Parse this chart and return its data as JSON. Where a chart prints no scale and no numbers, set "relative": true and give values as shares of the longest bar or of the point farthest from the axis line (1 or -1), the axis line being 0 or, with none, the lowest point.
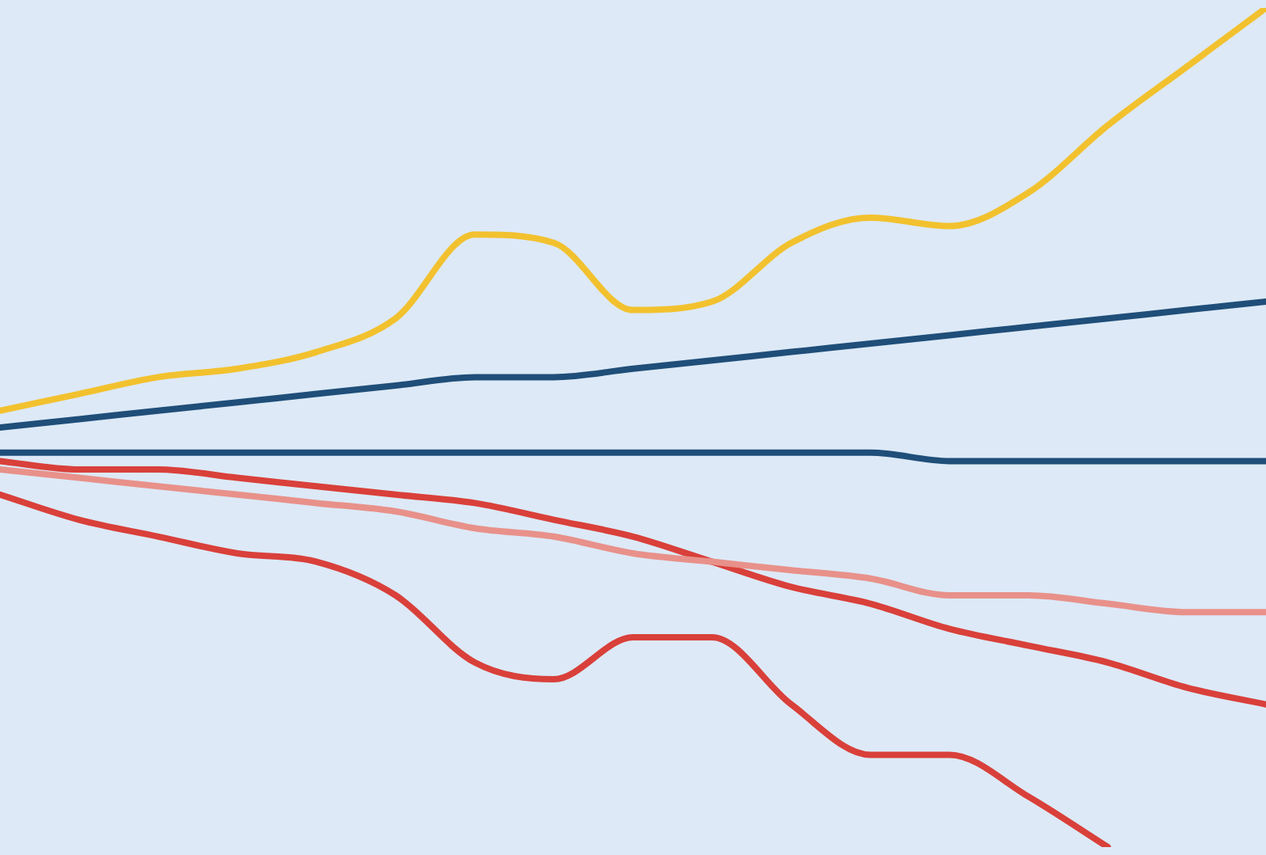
{
  "chart_data": {
    "type": "line",
    "relative": true,
    "categories": [
      null,
      null,
      null,
      null,
      null,
      null,
      null,
      null,
      null,
      null,
      null,
      null,
      null,
      null,
      null,
      null,
      null
    ],
    "series": [
      {
        "color": "#f2c12e",
        "values": [
          0.52,
          0.54,
          0.56,
          0.57,
          0.59,
          0.63,
          0.73,
          0.72,
          0.64,
          0.65,
          0.72,
          0.75,
          0.74,
          0.78,
          0.86,
          0.93,
          1
        ]
      },
      {
        "color": "#1f4e79",
        "values": [
          0.5,
          0.51,
          0.52,
          0.53,
          0.54,
          0.55,
          0.56,
          0.56,
          0.57,
          0.58,
          0.59,
          0.6,
          0.61,
          0.62,
          0.63,
          0.64,
          0.65
        ]
      },
      {
        "color": "#1f4e79",
        "values": [
          0.47,
          0.47,
          0.47,
          0.47,
          0.47,
          0.47,
          0.47,
          0.47,
          0.47,
          0.47,
          0.47,
          0.47,
          0.46,
          0.46,
          0.46,
          0.46,
          0.46
        ]
      },
      {
        "color": "#e8918a",
        "values": [
          0.45,
          0.44,
          0.43,
          0.42,
          0.41,
          0.4,
          0.38,
          0.37,
          0.35,
          0.34,
          0.33,
          0.32,
          0.3,
          0.3,
          0.29,
          0.28,
          0.28
        ]
      },
      {
        "color": "#d9403a",
        "values": [
          0.46,
          0.45,
          0.45,
          0.44,
          0.43,
          0.42,
          0.41,
          0.39,
          0.37,
          0.34,
          0.31,
          0.29,
          0.26,
          0.24,
          0.22,
          0.19,
          0.17
        ]
      },
      {
        "color": "#d9403a",
        "values": [
          0.42,
          0.39,
          0.37,
          0.35,
          0.34,
          0.3,
          0.22,
          0.2,
          0.25,
          0.25,
          0.17,
          0.11,
          0.11,
          0.06,
          0,
          null,
          null
        ]
      }
    ],
    "marker": "none",
    "line_style": "solid",
    "legend": false
  }
}
